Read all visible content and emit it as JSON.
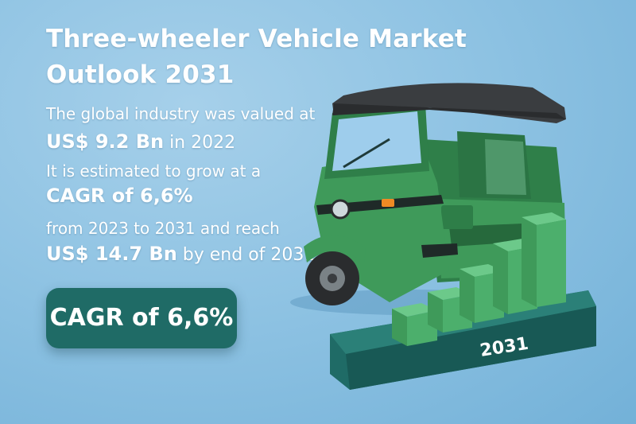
{
  "title": {
    "line1": "Three-wheeler Vehicle Market",
    "line2": "Outlook 2031"
  },
  "stats": {
    "valued_intro": "The global industry was valued at",
    "value_2022": "US$ 9.2 Bn",
    "value_2022_suffix": " in 2022",
    "growth_intro": "It is estimated to grow at a",
    "cagr_text": "CAGR of 6,6%",
    "period_text": "from 2023 to 2031 and reach",
    "value_2031": "US$ 14.7 Bn",
    "value_2031_suffix": " by end of 2031"
  },
  "badge": {
    "label": "CAGR of 6,6%"
  },
  "illustration": {
    "platform_label": "2031",
    "icons": [
      "auto-rickshaw-icon",
      "bar-chart-icon"
    ],
    "colors": {
      "background": "#8fc3e3",
      "vehicle_green": "#3f9a5a",
      "roof": "#3a3d40",
      "bars": "#4caf6c",
      "platform": "#1f6b66"
    }
  }
}
